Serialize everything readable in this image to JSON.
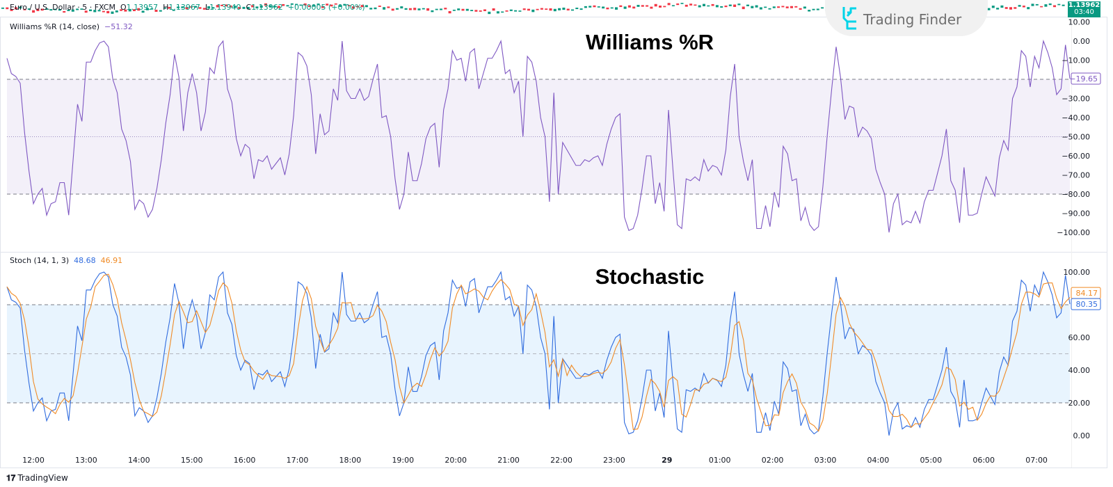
{
  "header": {
    "symbol": "Euro / U.S. Dollar · 5 · FXCM",
    "open_label": "O",
    "open": "1.13957",
    "high_label": "H",
    "high": "1.13967",
    "low_label": "L",
    "low": "1.13940",
    "close_label": "C",
    "close": "1.13962",
    "change": "+0.00005 (+0.00%)",
    "last_price": "1.13962",
    "countdown": "03:40",
    "up_color": "#089981",
    "down_color": "#f23645"
  },
  "watermark": {
    "text": "Trading Finder",
    "icon": "trading-finder-logo-icon",
    "color": "#00d4e8"
  },
  "footer": {
    "brand": "TradingView",
    "icon": "tradingview-logo-icon"
  },
  "chart_data": [
    {
      "type": "line",
      "title": "Williams %R",
      "indicator_label": "Williams %R (14, close)",
      "indicator_value": "−51.32",
      "last_value_label": "−19.65",
      "color": "#7e57c2",
      "band": {
        "upper": -20,
        "middle": -50,
        "lower": -80,
        "fill": "rgba(126,87,194,0.09)"
      },
      "ylim": [
        -100,
        10
      ],
      "yticks": [
        "10.00",
        "0.00",
        "−10.00",
        "−30.00",
        "−40.00",
        "−50.00",
        "−60.00",
        "−70.00",
        "−80.00",
        "−90.00",
        "−100.00"
      ],
      "ytick_values": [
        10,
        0,
        -10,
        -30,
        -40,
        -50,
        -60,
        -70,
        -80,
        -90,
        -100
      ],
      "values": [
        -9,
        -17,
        -18.5,
        -22,
        -48,
        -68,
        -85,
        -80,
        -77,
        -91,
        -85,
        -84,
        -74,
        -74,
        -91,
        -62,
        -33,
        -42,
        -11,
        -11,
        -5,
        -1,
        0,
        -3,
        -20,
        -27,
        -46,
        -52,
        -63,
        -88,
        -83,
        -85,
        -92,
        -88,
        -77,
        -62,
        -43,
        -28,
        -7,
        -19,
        -47,
        -27,
        -17,
        -27,
        -47,
        -37,
        -14,
        -17,
        -3,
        0,
        -25,
        -32,
        -51,
        -60,
        -54,
        -56,
        -72,
        -62,
        -63,
        -60,
        -67,
        -64,
        -61,
        -70,
        -59,
        -39,
        -6,
        -8,
        -13,
        -28,
        -59,
        -38,
        -49,
        -47,
        -25,
        -31,
        0,
        -26,
        -30,
        -30,
        -25,
        -31,
        -29,
        -20,
        -12,
        -40,
        -39,
        -50,
        -72,
        -88,
        -80,
        -58,
        -73,
        -73,
        -64,
        -51,
        -45,
        -43,
        -66,
        -36,
        -25,
        -5,
        -10,
        -9,
        -21,
        -6,
        -4,
        -25,
        -17,
        -9,
        -9,
        -5,
        0,
        -17,
        -15,
        -27,
        -21,
        -50,
        -8,
        -11,
        -21,
        -40,
        -50,
        -84,
        -27,
        -80,
        -53,
        -57,
        -61,
        -65,
        -65,
        -62,
        -63,
        -61,
        -60,
        -65,
        -54,
        -46,
        -40,
        -38,
        -92,
        -99,
        -98,
        -91,
        -77,
        -60,
        -60,
        -85,
        -74,
        -89,
        -36,
        -67,
        -96,
        -98,
        -72,
        -73,
        -71,
        -73,
        -62,
        -68,
        -65,
        -66,
        -70,
        -57,
        -29,
        -12,
        -50,
        -63,
        -73,
        -62,
        -98,
        -98,
        -86,
        -97,
        -79,
        -87,
        -55,
        -59,
        -73,
        -72,
        -94,
        -87,
        -96,
        -99,
        -97,
        -76,
        -49,
        -25,
        -3,
        -19,
        -41,
        -34,
        -35,
        -50,
        -45,
        -47,
        -51,
        -67,
        -74,
        -80,
        -100,
        -85,
        -80,
        -96,
        -94,
        -95,
        -89,
        -95,
        -84,
        -78,
        -78,
        -69,
        -60,
        -46,
        -73,
        -78,
        -95,
        -66,
        -91,
        -91,
        -90,
        -80,
        -71,
        -76,
        -81,
        -61,
        -52,
        -57,
        -30,
        -24,
        -5,
        -8,
        -24,
        -8,
        -14,
        0,
        -6,
        -14,
        -28,
        -25,
        -2,
        -19.65
      ]
    },
    {
      "type": "line",
      "title": "Stochastic",
      "indicator_label": "Stoch (14, 1, 3)",
      "k_value": "48.68",
      "d_value": "46.91",
      "k_last_label": "80.35",
      "d_last_label": "84.17",
      "d_period": 3,
      "k_color": "#2f6bde",
      "d_color": "#f08a24",
      "band": {
        "upper": 80,
        "middle": 50,
        "lower": 20,
        "fill": "rgba(33,150,243,0.10)"
      },
      "ylim": [
        0,
        100
      ],
      "yticks": [
        "100.00",
        "60.00",
        "40.00",
        "20.00",
        "0.00"
      ],
      "ytick_values": [
        100,
        60,
        40,
        20,
        0
      ],
      "series": [
        {
          "values": [
            91,
            83,
            81.5,
            78,
            52,
            32,
            15,
            20,
            23,
            9,
            15,
            16,
            26,
            26,
            9,
            38,
            67,
            58,
            89,
            89,
            95,
            99,
            100,
            97,
            80,
            73,
            54,
            48,
            37,
            12,
            17,
            15,
            8,
            12,
            23,
            38,
            57,
            72,
            93,
            81,
            53,
            73,
            83,
            73,
            53,
            63,
            86,
            83,
            97,
            100,
            75,
            68,
            49,
            40,
            46,
            44,
            28,
            38,
            37,
            40,
            33,
            36,
            39,
            30,
            41,
            61,
            94,
            92,
            87,
            72,
            41,
            62,
            51,
            53,
            75,
            69,
            100,
            74,
            70,
            70,
            75,
            69,
            71,
            80,
            88,
            60,
            61,
            50,
            28,
            12,
            20,
            42,
            27,
            27,
            36,
            49,
            55,
            57,
            34,
            64,
            75,
            95,
            90,
            91,
            79,
            94,
            96,
            75,
            83,
            91,
            91,
            95,
            100,
            83,
            85,
            73,
            79,
            50,
            92,
            89,
            79,
            60,
            50,
            16,
            73,
            20,
            47,
            43,
            39,
            35,
            35,
            38,
            37,
            39,
            40,
            35,
            46,
            54,
            60,
            62,
            8,
            1,
            2,
            9,
            23,
            40,
            40,
            15,
            26,
            11,
            64,
            33,
            4,
            2,
            28,
            27,
            29,
            27,
            38,
            32,
            35,
            34,
            30,
            43,
            71,
            88,
            50,
            37,
            27,
            38,
            2,
            2,
            14,
            3,
            21,
            13,
            45,
            41,
            27,
            28,
            6,
            13,
            4,
            1,
            3,
            24,
            51,
            75,
            97,
            81,
            59,
            66,
            65,
            50,
            55,
            53,
            49,
            33,
            26,
            20,
            0,
            15,
            20,
            4,
            6,
            5,
            11,
            5,
            16,
            22,
            22,
            31,
            40,
            54,
            27,
            22,
            5,
            34,
            9,
            9,
            10,
            20,
            29,
            24,
            19,
            39,
            48,
            43,
            70,
            76,
            95,
            92,
            76,
            92,
            86,
            100,
            94,
            86,
            72,
            75,
            98,
            80.35
          ]
        }
      ]
    }
  ],
  "time_axis": [
    "12:00",
    "13:00",
    "14:00",
    "15:00",
    "16:00",
    "17:00",
    "18:00",
    "19:00",
    "20:00",
    "21:00",
    "22:00",
    "23:00",
    "29",
    "01:00",
    "02:00",
    "03:00",
    "04:00",
    "05:00",
    "06:00",
    "07:00"
  ]
}
